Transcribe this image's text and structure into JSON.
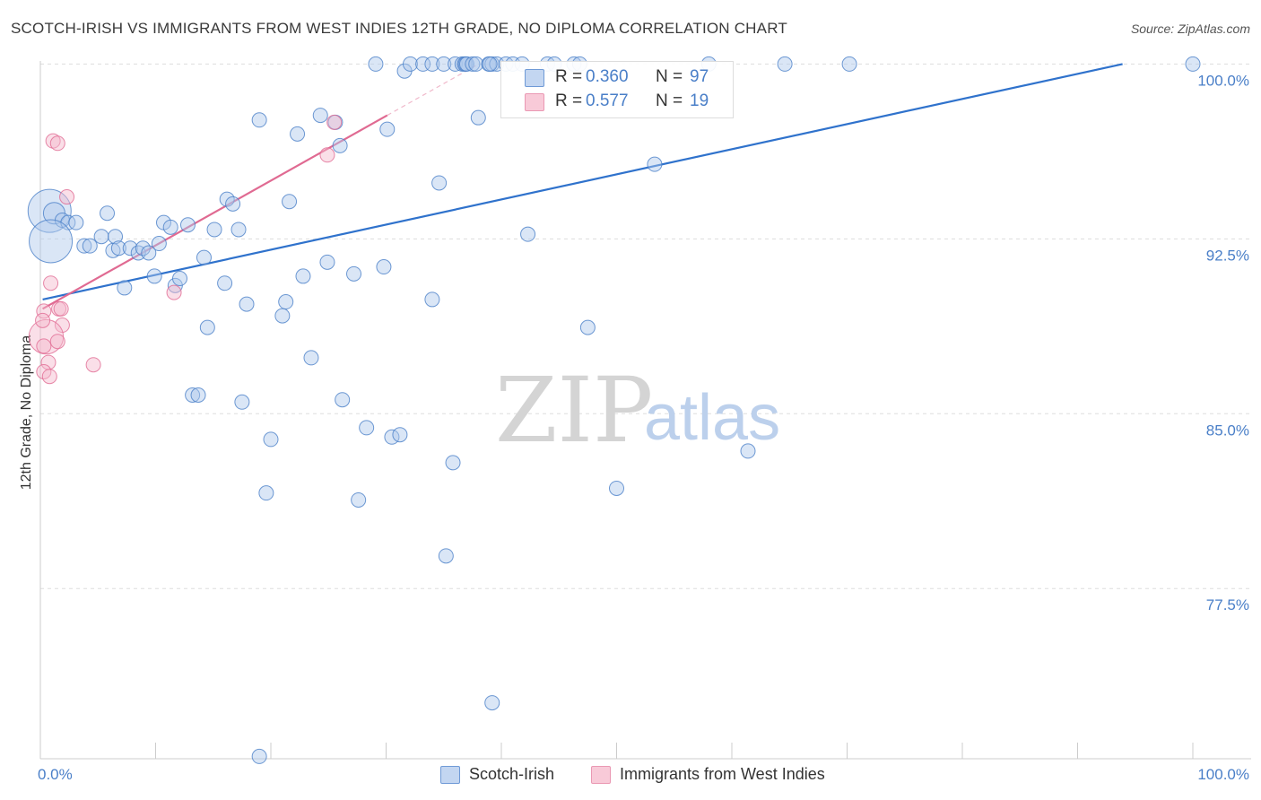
{
  "title": "SCOTCH-IRISH VS IMMIGRANTS FROM WEST INDIES 12TH GRADE, NO DIPLOMA CORRELATION CHART",
  "source": "Source: ZipAtlas.com",
  "watermark": {
    "zip": "ZIP",
    "atlas": "atlas"
  },
  "colors": {
    "blue": "#4a7fc8",
    "blue_fill": "#aec8ec",
    "blue_line": "#2f72cc",
    "pink": "#e16b93",
    "pink_fill": "#f5b8cb",
    "pink_line": "#e06a92",
    "grid": "#dddddd"
  },
  "legend": {
    "rows": [
      {
        "label": "R =",
        "r": "0.360",
        "n_label": "N =",
        "n": "97"
      },
      {
        "label": "R =",
        "r": "0.577",
        "n_label": "N =",
        "n": "19"
      }
    ]
  },
  "bottom_legend": {
    "series1": "Scotch-Irish",
    "series2": "Immigrants from West Indies"
  },
  "chart_data": {
    "type": "scatter",
    "title": "SCOTCH-IRISH VS IMMIGRANTS FROM WEST INDIES 12TH GRADE, NO DIPLOMA CORRELATION CHART",
    "xlabel": "",
    "ylabel": "12th Grade, No Diploma",
    "xlim": [
      0,
      100
    ],
    "ylim": [
      70.2,
      100.9
    ],
    "x_tick_labels": [
      {
        "value": 0,
        "label": "0.0%"
      },
      {
        "value": 100,
        "label": "100.0%"
      }
    ],
    "y_tick_labels": [
      {
        "value": 100.0,
        "label": "100.0%"
      },
      {
        "value": 92.5,
        "label": "92.5%"
      },
      {
        "value": 85.0,
        "label": "85.0%"
      },
      {
        "value": 77.5,
        "label": "77.5%"
      }
    ],
    "x_minor_ticks": [
      0,
      10,
      20,
      30,
      40,
      50,
      60,
      70,
      80,
      90,
      100
    ],
    "series": [
      {
        "name": "Scotch-Irish",
        "color": "#4a7fc8",
        "trend": {
          "x": [
            0.2,
            93.9
          ],
          "y": [
            89.9,
            100.0
          ]
        },
        "points": [
          [
            0.8,
            93.7,
            3
          ],
          [
            1.2,
            93.6,
            1.5
          ],
          [
            1.9,
            93.3,
            1
          ],
          [
            2.4,
            93.2,
            1
          ],
          [
            3.1,
            93.2,
            1
          ],
          [
            0.9,
            92.4,
            3
          ],
          [
            3.8,
            92.2,
            1
          ],
          [
            4.3,
            92.2,
            1
          ],
          [
            5.3,
            92.6,
            1
          ],
          [
            5.8,
            93.6,
            1
          ],
          [
            6.3,
            92.0,
            1
          ],
          [
            6.5,
            92.6,
            1
          ],
          [
            6.8,
            92.1,
            1
          ],
          [
            7.8,
            92.1,
            1
          ],
          [
            8.5,
            91.9,
            1
          ],
          [
            8.9,
            92.1,
            1
          ],
          [
            9.4,
            91.9,
            1
          ],
          [
            10.3,
            92.3,
            1
          ],
          [
            10.7,
            93.2,
            1
          ],
          [
            11.3,
            93.0,
            1
          ],
          [
            7.3,
            90.4,
            1
          ],
          [
            9.9,
            90.9,
            1
          ],
          [
            11.7,
            90.5,
            1
          ],
          [
            12.1,
            90.8,
            1
          ],
          [
            12.8,
            93.1,
            1
          ],
          [
            14.2,
            91.7,
            1
          ],
          [
            15.1,
            92.9,
            1
          ],
          [
            16.0,
            90.6,
            1
          ],
          [
            16.2,
            94.2,
            1
          ],
          [
            16.7,
            94.0,
            1
          ],
          [
            17.2,
            92.9,
            1
          ],
          [
            14.5,
            88.7,
            1
          ],
          [
            13.2,
            85.8,
            1
          ],
          [
            13.7,
            85.8,
            1
          ],
          [
            17.5,
            85.5,
            1
          ],
          [
            17.9,
            89.7,
            1
          ],
          [
            19.0,
            97.6,
            1
          ],
          [
            20.0,
            83.9,
            1
          ],
          [
            19.6,
            81.6,
            1
          ],
          [
            19.0,
            70.3,
            1
          ],
          [
            21.0,
            89.2,
            1
          ],
          [
            21.3,
            89.8,
            1
          ],
          [
            21.6,
            94.1,
            1
          ],
          [
            22.3,
            97.0,
            1
          ],
          [
            22.8,
            90.9,
            1
          ],
          [
            23.5,
            87.4,
            1
          ],
          [
            24.3,
            97.8,
            1
          ],
          [
            24.9,
            91.5,
            1
          ],
          [
            25.6,
            97.5,
            1
          ],
          [
            26.0,
            96.5,
            1
          ],
          [
            26.2,
            85.6,
            1
          ],
          [
            27.2,
            91.0,
            1
          ],
          [
            27.6,
            81.3,
            1
          ],
          [
            28.3,
            84.4,
            1
          ],
          [
            29.1,
            100.0,
            1
          ],
          [
            29.8,
            91.3,
            1
          ],
          [
            30.1,
            97.2,
            1
          ],
          [
            30.5,
            84.0,
            1
          ],
          [
            31.2,
            84.1,
            1
          ],
          [
            31.6,
            99.7,
            1
          ],
          [
            32.1,
            100.0,
            1
          ],
          [
            33.2,
            100.0,
            1
          ],
          [
            34.0,
            100.0,
            1
          ],
          [
            34.0,
            89.9,
            1
          ],
          [
            34.6,
            94.9,
            1
          ],
          [
            35.0,
            100.0,
            1
          ],
          [
            36.0,
            100.0,
            1
          ],
          [
            36.6,
            100.0,
            1
          ],
          [
            36.8,
            100.0,
            1
          ],
          [
            36.9,
            100.0,
            1
          ],
          [
            37.0,
            100.0,
            1
          ],
          [
            37.5,
            100.0,
            1
          ],
          [
            38.0,
            97.7,
            1
          ],
          [
            37.8,
            100.0,
            1
          ],
          [
            38.9,
            100.0,
            1
          ],
          [
            39.2,
            100.0,
            1
          ],
          [
            39.6,
            100.0,
            1
          ],
          [
            39.0,
            100.0,
            1
          ],
          [
            40.4,
            100.0,
            1
          ],
          [
            41.0,
            100.0,
            1
          ],
          [
            41.8,
            100.0,
            1
          ],
          [
            42.3,
            92.7,
            1
          ],
          [
            44.0,
            100.0,
            1
          ],
          [
            44.6,
            100.0,
            1
          ],
          [
            46.3,
            100.0,
            1
          ],
          [
            46.8,
            100.0,
            1
          ],
          [
            35.8,
            82.9,
            1
          ],
          [
            35.2,
            78.9,
            1
          ],
          [
            39.2,
            72.6,
            1
          ],
          [
            47.5,
            88.7,
            1
          ],
          [
            50.0,
            81.8,
            1
          ],
          [
            53.3,
            95.7,
            1
          ],
          [
            58.0,
            100.0,
            1
          ],
          [
            61.4,
            83.4,
            1
          ],
          [
            64.6,
            100.0,
            1
          ],
          [
            70.2,
            100.0,
            1
          ],
          [
            100.0,
            100.0,
            1
          ]
        ]
      },
      {
        "name": "Immigrants from West Indies",
        "color": "#e16b93",
        "trend": {
          "x": [
            0.2,
            30.1
          ],
          "y": [
            89.5,
            97.8
          ]
        },
        "points": [
          [
            1.1,
            96.7,
            1
          ],
          [
            1.5,
            96.6,
            1
          ],
          [
            2.3,
            94.3,
            1
          ],
          [
            0.9,
            90.6,
            1
          ],
          [
            1.6,
            89.5,
            1
          ],
          [
            1.8,
            89.5,
            1
          ],
          [
            1.9,
            88.8,
            1
          ],
          [
            0.3,
            89.4,
            1
          ],
          [
            0.5,
            88.3,
            2.4
          ],
          [
            0.3,
            87.9,
            1
          ],
          [
            1.5,
            88.1,
            1
          ],
          [
            0.7,
            87.2,
            1
          ],
          [
            0.3,
            86.8,
            1
          ],
          [
            0.8,
            86.6,
            1
          ],
          [
            4.6,
            87.1,
            1
          ],
          [
            11.6,
            90.2,
            1
          ],
          [
            24.9,
            96.1,
            1
          ],
          [
            25.5,
            97.5,
            1
          ],
          [
            0.2,
            89.0,
            1
          ]
        ]
      }
    ]
  }
}
